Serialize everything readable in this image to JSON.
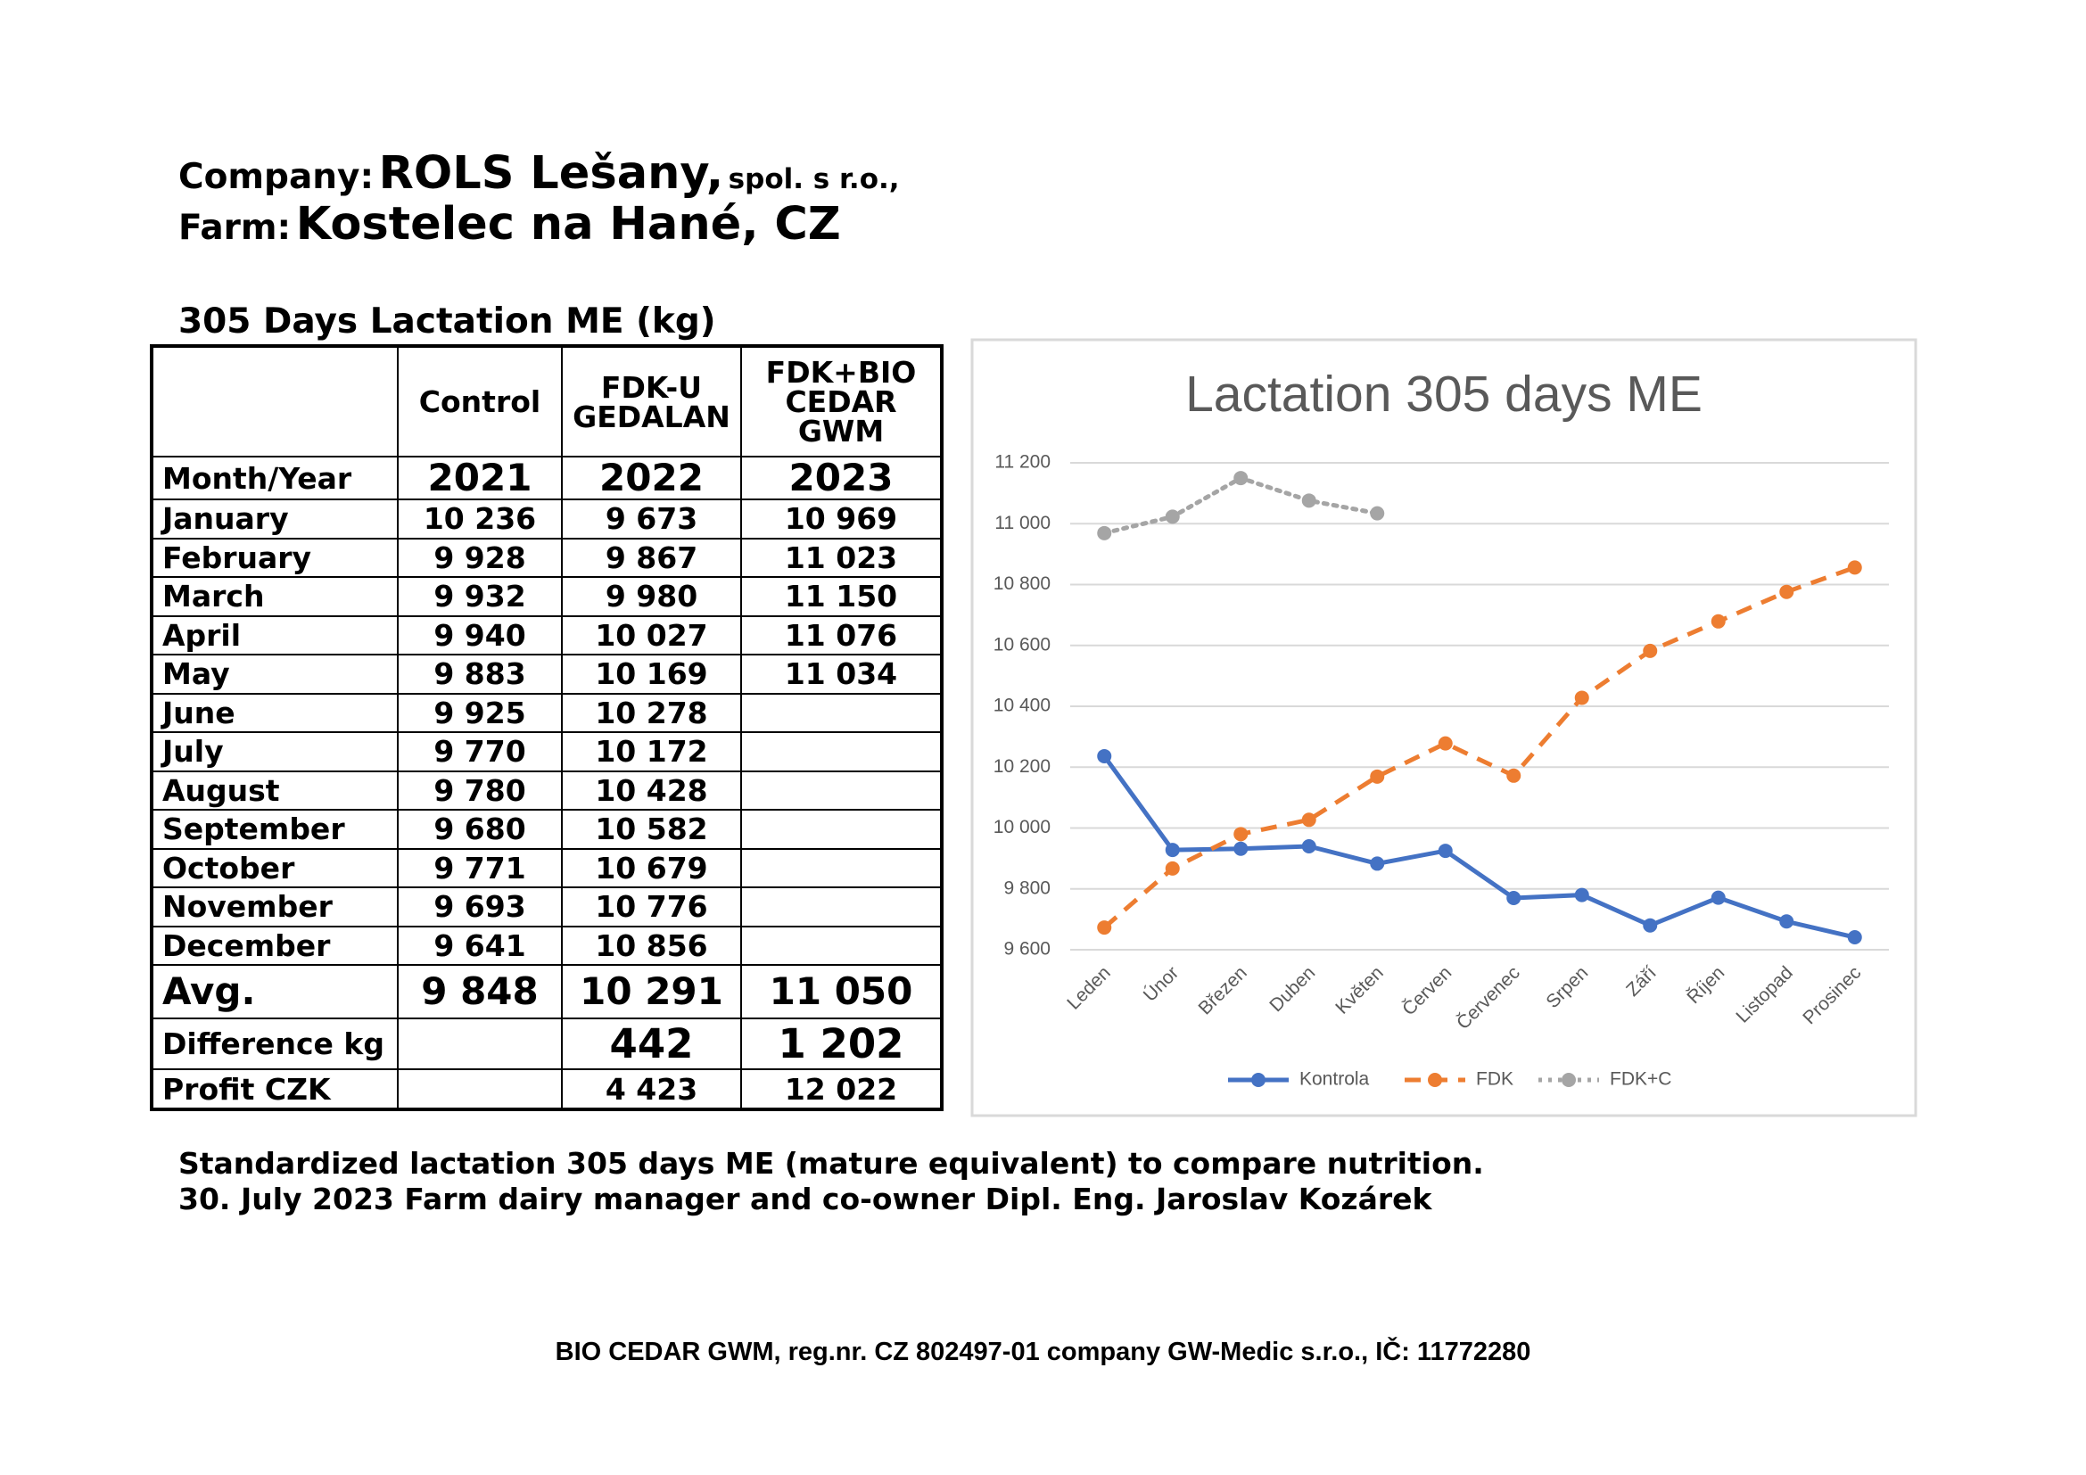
{
  "header": {
    "company_label": "Company:",
    "company": "ROLS Lešany,",
    "company_suffix": "spol. s r.o.,",
    "farm_label": "Farm:",
    "farm": "Kostelec na Hané, CZ"
  },
  "table": {
    "title": "305 Days Lactation ME (kg)",
    "columns": [
      "Control",
      "FDK-U\nGEDALAN",
      "FDK+BIO\nCEDAR\nGWM"
    ],
    "year_row": {
      "label": "Month/Year",
      "cells": [
        "2021",
        "2022",
        "2023"
      ]
    },
    "rows": [
      {
        "label": "January",
        "cells": [
          "10 236",
          "9 673",
          "10 969"
        ]
      },
      {
        "label": "February",
        "cells": [
          "9 928",
          "9 867",
          "11 023"
        ]
      },
      {
        "label": "March",
        "cells": [
          "9 932",
          "9 980",
          "11 150"
        ]
      },
      {
        "label": "April",
        "cells": [
          "9 940",
          "10 027",
          "11 076"
        ]
      },
      {
        "label": "May",
        "cells": [
          "9 883",
          "10 169",
          "11 034"
        ]
      },
      {
        "label": "June",
        "cells": [
          "9 925",
          "10 278"
        ]
      },
      {
        "label": "July",
        "cells": [
          "9 770",
          "10 172"
        ]
      },
      {
        "label": "August",
        "cells": [
          "9 780",
          "10 428"
        ]
      },
      {
        "label": "September",
        "cells": [
          "9 680",
          "10 582"
        ]
      },
      {
        "label": "October",
        "cells": [
          "9 771",
          "10 679"
        ]
      },
      {
        "label": "November",
        "cells": [
          "9 693",
          "10 776"
        ]
      },
      {
        "label": "December",
        "cells": [
          "9 641",
          "10 856"
        ]
      }
    ],
    "avg": {
      "label": "Avg.",
      "cells": [
        "9 848",
        "10 291",
        "11 050"
      ]
    },
    "difference": {
      "label": "Difference kg",
      "cells": [
        null,
        "442",
        "1 202"
      ]
    },
    "profit": {
      "label": "Profit CZK",
      "cells": [
        null,
        "4 423",
        "12 022"
      ]
    }
  },
  "chart_data": {
    "type": "line",
    "title": "Lactation 305 days ME",
    "categories": [
      "Leden",
      "Únor",
      "Březen",
      "Duben",
      "Květen",
      "Červen",
      "Červenec",
      "Srpen",
      "Září",
      "Říjen",
      "Listopad",
      "Prosinec"
    ],
    "series": [
      {
        "name": "Kontrola",
        "color": "#4472c4",
        "dash": "solid",
        "values": [
          10236,
          9928,
          9932,
          9940,
          9883,
          9925,
          9770,
          9780,
          9680,
          9771,
          9693,
          9641
        ]
      },
      {
        "name": "FDK",
        "color": "#ed7d31",
        "dash": "dashed",
        "values": [
          9673,
          9867,
          9980,
          10027,
          10169,
          10278,
          10172,
          10428,
          10582,
          10679,
          10776,
          10856
        ]
      },
      {
        "name": "FDK+C",
        "color": "#a5a5a5",
        "dash": "dotted",
        "values": [
          10969,
          11023,
          11150,
          11076,
          11034,
          null,
          null,
          null,
          null,
          null,
          null,
          null
        ]
      }
    ],
    "ylim": [
      9600,
      11200
    ],
    "yticks": [
      {
        "value": 9600,
        "label": "9 600"
      },
      {
        "value": 9800,
        "label": "9 800"
      },
      {
        "value": 10000,
        "label": "10 000"
      },
      {
        "value": 10200,
        "label": "10 200"
      },
      {
        "value": 10400,
        "label": "10 400"
      },
      {
        "value": 10600,
        "label": "10 600"
      },
      {
        "value": 10800,
        "label": "10 800"
      },
      {
        "value": 11000,
        "label": "11 000"
      },
      {
        "value": 11200,
        "label": "11 200"
      }
    ],
    "grid": true,
    "legend": "bottom"
  },
  "notes": [
    "Standardized lactation 305 days ME (mature equivalent) to compare nutrition.",
    "30. July 2023 Farm dairy manager and co-owner Dipl. Eng. Jaroslav Kozárek"
  ],
  "footer": "BIO CEDAR GWM, reg.nr. CZ 802497-01 company GW-Medic s.r.o., IČ: 11772280"
}
